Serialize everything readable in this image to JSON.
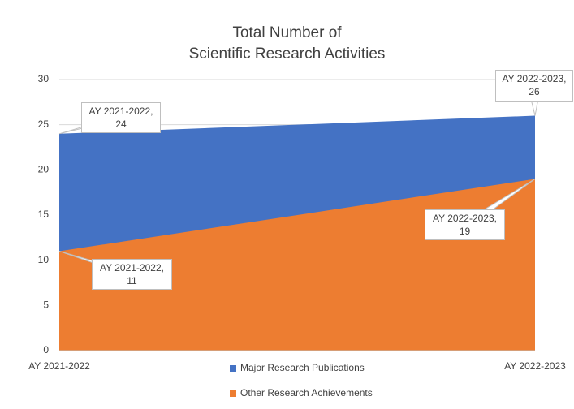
{
  "chart_data": {
    "type": "area",
    "title": "Total Number of\nScientific Research Activities",
    "categories": [
      "AY 2021-2022",
      "AY 2022-2023"
    ],
    "series": [
      {
        "name": "Major Research Publications",
        "color": "#4472c4",
        "values": [
          24,
          26
        ],
        "value_labels": [
          "AY 2021-2022,\n24",
          "AY 2022-2023,\n26"
        ]
      },
      {
        "name": "Other Research Achievements",
        "color": "#ed7d31",
        "values": [
          11,
          19
        ],
        "value_labels": [
          "AY 2021-2022,\n11",
          "AY 2022-2023,\n19"
        ]
      }
    ],
    "ylim": [
      0,
      30
    ],
    "yticks": [
      0,
      5,
      10,
      15,
      20,
      25,
      30
    ],
    "grid": true
  }
}
